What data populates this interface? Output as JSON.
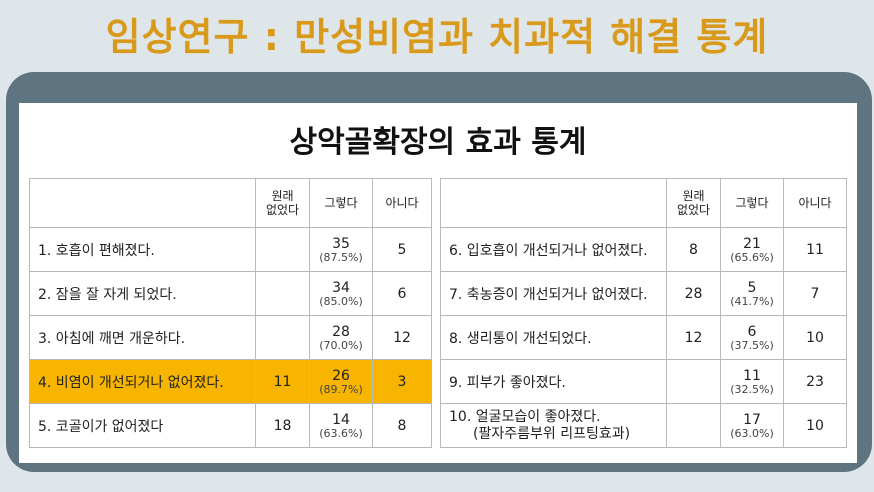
{
  "title": "임상연구 : 만성비염과 치과적 해결 통계",
  "subtitle": "상악골확장의 효과 통계",
  "headers": {
    "col1": "원래\n없었다",
    "col2": "그렇다",
    "col3": "아니다"
  },
  "left_rows": [
    {
      "item": "1. 호흡이 편해졌다.",
      "none": "",
      "yes": "35",
      "yes_pct": "(87.5%)",
      "no": "5",
      "highlight": false
    },
    {
      "item": "2. 잠을 잘 자게 되었다.",
      "none": "",
      "yes": "34",
      "yes_pct": "(85.0%)",
      "no": "6",
      "highlight": false
    },
    {
      "item": "3. 아침에 깨면 개운하다.",
      "none": "",
      "yes": "28",
      "yes_pct": "(70.0%)",
      "no": "12",
      "highlight": false
    },
    {
      "item": "4. 비염이 개선되거나 없어졌다.",
      "none": "11",
      "yes": "26",
      "yes_pct": "(89.7%)",
      "no": "3",
      "highlight": true
    },
    {
      "item": "5. 코골이가 없어졌다",
      "none": "18",
      "yes": "14",
      "yes_pct": "(63.6%)",
      "no": "8",
      "highlight": false
    }
  ],
  "right_rows": [
    {
      "item": "6. 입호흡이 개선되거나 없어졌다.",
      "none": "8",
      "yes": "21",
      "yes_pct": "(65.6%)",
      "no": "11"
    },
    {
      "item": "7. 축농증이 개선되거나 없어졌다.",
      "none": "28",
      "yes": "5",
      "yes_pct": "(41.7%)",
      "no": "7"
    },
    {
      "item": "8. 생리통이 개선되었다.",
      "none": "12",
      "yes": "6",
      "yes_pct": "(37.5%)",
      "no": "10"
    },
    {
      "item": "9. 피부가 좋아졌다.",
      "none": "",
      "yes": "11",
      "yes_pct": "(32.5%)",
      "no": "23"
    },
    {
      "item": "10. 얼굴모습이 좋아졌다.",
      "item_line2": "(팔자주름부위 리프팅효과)",
      "none": "",
      "yes": "17",
      "yes_pct": "(63.0%)",
      "no": "10"
    }
  ],
  "colors": {
    "title": "#d99a1c",
    "frame": "#5f7481",
    "highlight": "#f7b500"
  }
}
